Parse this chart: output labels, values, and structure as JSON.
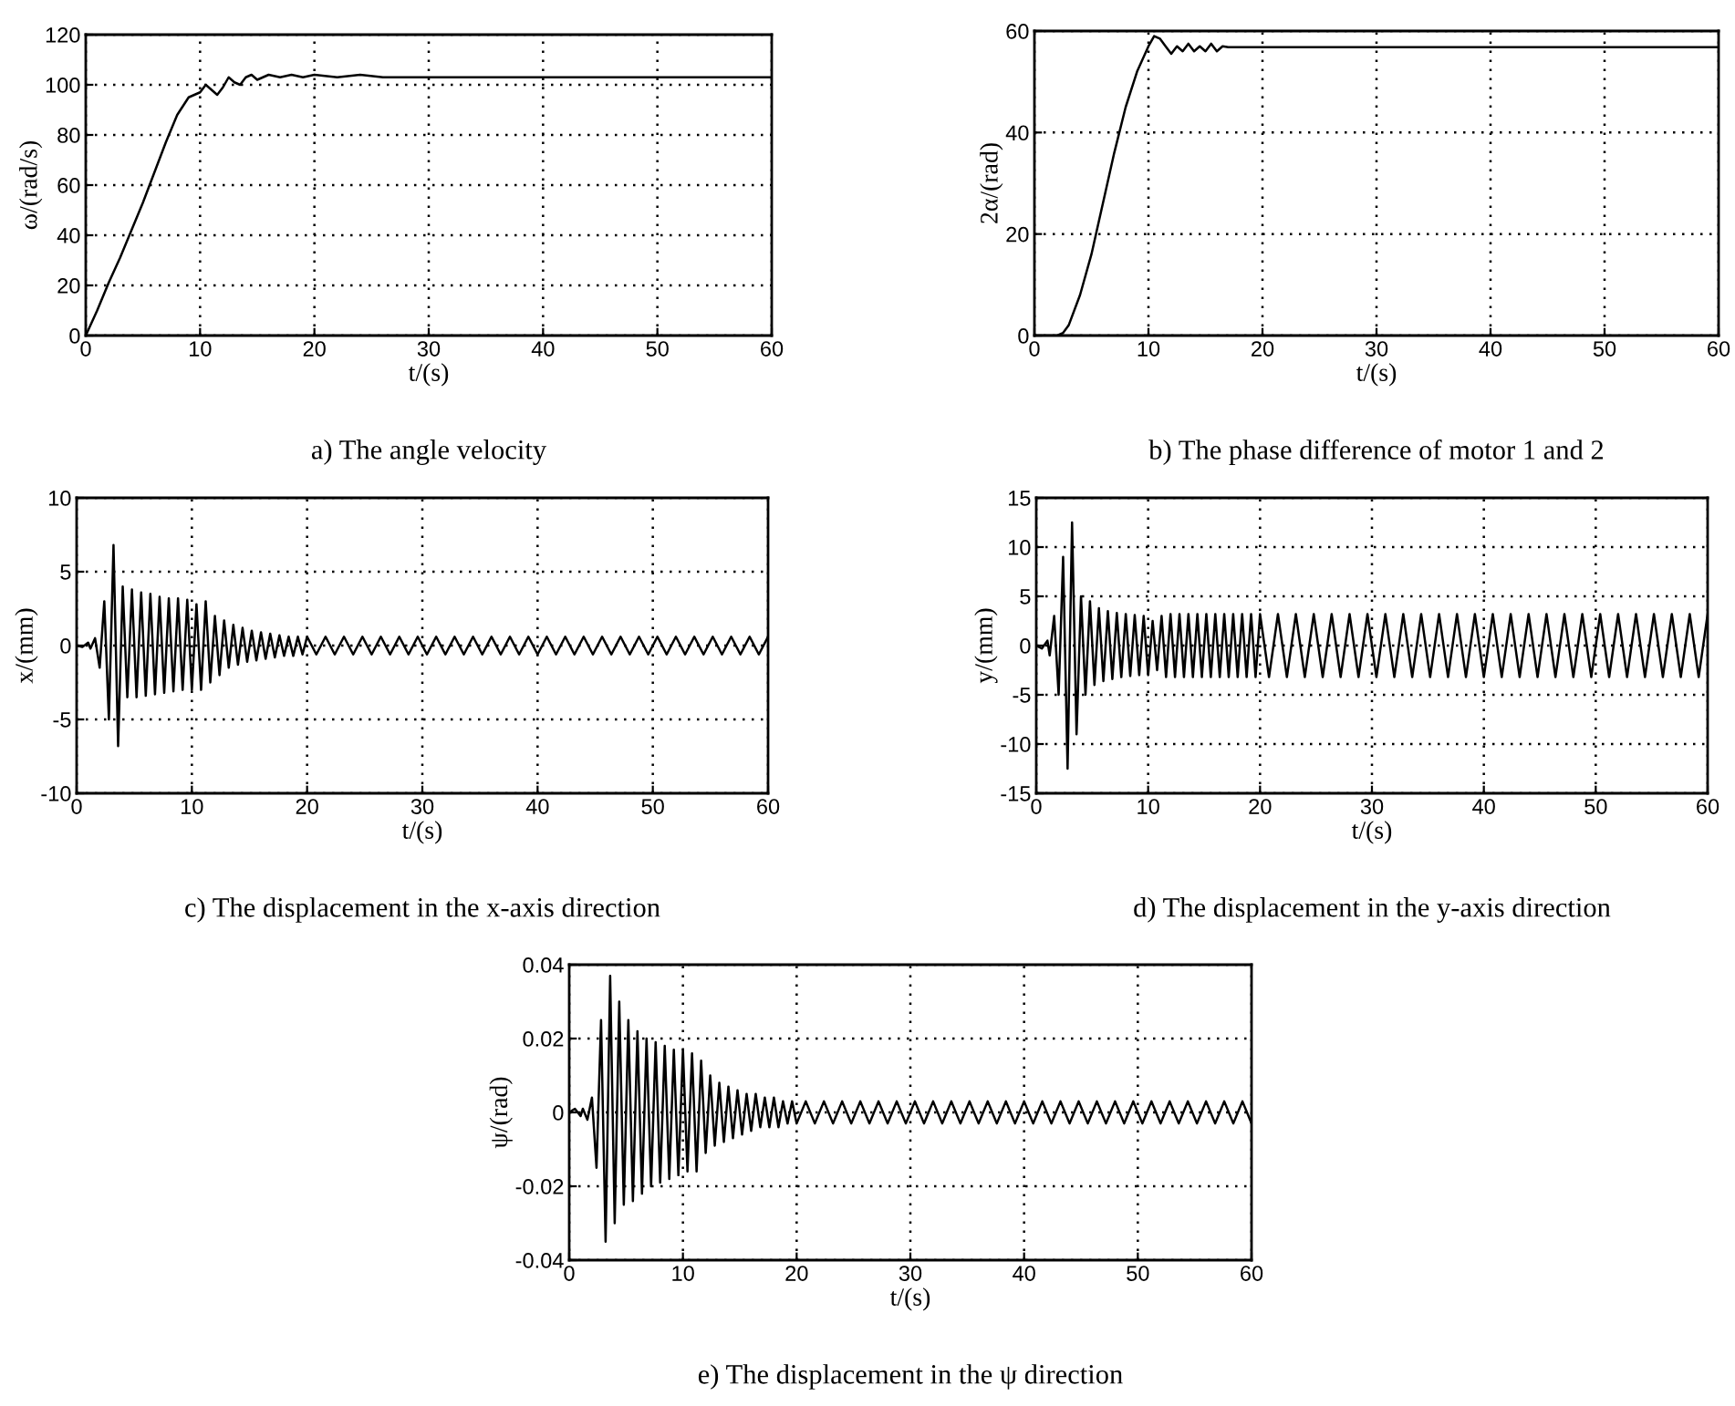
{
  "chart_data": [
    {
      "type": "line",
      "xlabel": "t/(s)",
      "ylabel": "ω/(rad/s)",
      "annotations": [
        "a) The angle velocity"
      ],
      "xlim": [
        0,
        60
      ],
      "ylim": [
        0,
        120
      ],
      "xticks": [
        0,
        10,
        20,
        30,
        40,
        50,
        60
      ],
      "yticks": [
        0,
        20,
        40,
        60,
        80,
        100,
        120
      ],
      "grid": true,
      "line_style": "solid",
      "marker": "none",
      "x": [
        0,
        1,
        2,
        3,
        4,
        5,
        6,
        7,
        8,
        9,
        10,
        10.5,
        11,
        11.5,
        12,
        12.5,
        13,
        13.5,
        14,
        14.5,
        15,
        16,
        17,
        18,
        19,
        20,
        22,
        24,
        26,
        30,
        60
      ],
      "series": [
        {
          "color": "#000000",
          "values": [
            0,
            10,
            21,
            31,
            42,
            53,
            65,
            77,
            88,
            95,
            97,
            100,
            98,
            96,
            99,
            103,
            101,
            100,
            103,
            104,
            102,
            104,
            103,
            104,
            103,
            104,
            103,
            104,
            103,
            103,
            103
          ]
        }
      ]
    },
    {
      "type": "line",
      "xlabel": "t/(s)",
      "ylabel": "2α/(rad)",
      "annotations": [
        "b) The phase difference of motor 1 and 2"
      ],
      "xlim": [
        0,
        60
      ],
      "ylim": [
        0,
        60
      ],
      "xticks": [
        0,
        10,
        20,
        30,
        40,
        50,
        60
      ],
      "yticks": [
        0,
        20,
        40,
        60
      ],
      "grid": true,
      "line_style": "solid",
      "marker": "none",
      "x": [
        0,
        1,
        2,
        2.5,
        3,
        4,
        5,
        6,
        7,
        8,
        9,
        10,
        10.5,
        11,
        11.5,
        12,
        12.5,
        13,
        13.5,
        14,
        14.5,
        15,
        15.5,
        16,
        16.5,
        17,
        60
      ],
      "series": [
        {
          "color": "#000000",
          "values": [
            0,
            0,
            0,
            0.5,
            2,
            8,
            16,
            26,
            36,
            45,
            52,
            57,
            59,
            58.5,
            57,
            55.5,
            57,
            56,
            57.5,
            56,
            57,
            56,
            57.5,
            56,
            57,
            56.8,
            56.8
          ]
        }
      ]
    },
    {
      "type": "line",
      "xlabel": "t/(s)",
      "ylabel": "x/(mm)",
      "annotations": [
        "c) The displacement in the x-axis direction"
      ],
      "xlim": [
        0,
        60
      ],
      "ylim": [
        -10,
        10
      ],
      "xticks": [
        0,
        10,
        20,
        30,
        40,
        50,
        60
      ],
      "yticks": [
        -10,
        -5,
        0,
        5,
        10
      ],
      "grid": true,
      "line_style": "solid",
      "marker": "none",
      "x": [
        0,
        0.5,
        1,
        1.2,
        1.6,
        2,
        2.4,
        2.8,
        3.2,
        3.6,
        4,
        4.4,
        4.8,
        5.2,
        5.6,
        6,
        6.4,
        6.8,
        7.2,
        7.6,
        8,
        8.4,
        8.8,
        9.2,
        9.6,
        10,
        10.4,
        10.8,
        11.2,
        11.6,
        12,
        12.4,
        12.8,
        13.2,
        13.6,
        14,
        14.4,
        14.8,
        15.2,
        15.6,
        16,
        16.4,
        16.8,
        17.2,
        17.6,
        18,
        18.4,
        18.8,
        19.2,
        19.6,
        20,
        20.8,
        21.6,
        22.4,
        23.2,
        24,
        24.8,
        25.6,
        26.4,
        27.2,
        28,
        28.8,
        29.6,
        30.4,
        31.2,
        32,
        32.8,
        33.6,
        34.4,
        35.2,
        36,
        36.8,
        37.6,
        38.4,
        39.2,
        40,
        40.8,
        41.6,
        42.4,
        43.2,
        44,
        44.8,
        45.6,
        46.4,
        47.2,
        48,
        48.8,
        49.6,
        50.4,
        51.2,
        52,
        52.8,
        53.6,
        54.4,
        55.2,
        56,
        56.8,
        57.6,
        58.4,
        59.2,
        60
      ],
      "series": [
        {
          "color": "#000000",
          "values": [
            0,
            -0.1,
            0.2,
            -0.2,
            0.5,
            -1.5,
            3,
            -5,
            6.8,
            -6.8,
            4,
            -3.5,
            3.8,
            -3.5,
            3.6,
            -3.4,
            3.5,
            -3.3,
            3.3,
            -3.2,
            3.2,
            -3.1,
            3.2,
            -3,
            3.1,
            -3,
            2.8,
            -3,
            3,
            -2.5,
            2,
            -2,
            1.7,
            -1.5,
            1.4,
            -1.3,
            1.2,
            -1.1,
            1,
            -1,
            0.9,
            -0.9,
            0.8,
            -0.8,
            0.7,
            -0.7,
            0.6,
            -0.7,
            0.6,
            -0.6,
            0.6,
            -0.6,
            0.6,
            -0.6,
            0.6,
            -0.6,
            0.6,
            -0.6,
            0.6,
            -0.6,
            0.6,
            -0.6,
            0.6,
            -0.6,
            0.6,
            -0.6,
            0.6,
            -0.6,
            0.6,
            -0.6,
            0.6,
            -0.6,
            0.6,
            -0.6,
            0.6,
            -0.6,
            0.6,
            -0.6,
            0.6,
            -0.6,
            0.6,
            -0.6,
            0.6,
            -0.6,
            0.6,
            -0.6,
            0.6,
            -0.6,
            0.6,
            -0.6,
            0.6,
            -0.6,
            0.6,
            -0.6,
            0.6,
            -0.6,
            0.6,
            -0.6,
            0.6,
            -0.6,
            0.6
          ]
        }
      ]
    },
    {
      "type": "line",
      "xlabel": "t/(s)",
      "ylabel": "y/(mm)",
      "annotations": [
        "d) The displacement in the y-axis direction"
      ],
      "xlim": [
        0,
        60
      ],
      "ylim": [
        -15,
        15
      ],
      "xticks": [
        0,
        10,
        20,
        30,
        40,
        50,
        60
      ],
      "yticks": [
        -15,
        -10,
        -5,
        0,
        5,
        10,
        15
      ],
      "grid": true,
      "line_style": "solid",
      "marker": "none",
      "x": [
        0,
        0.5,
        1,
        1.2,
        1.6,
        2,
        2.4,
        2.8,
        3.2,
        3.6,
        4,
        4.4,
        4.8,
        5.2,
        5.6,
        6,
        6.4,
        6.8,
        7.2,
        7.6,
        8,
        8.4,
        8.8,
        9.2,
        9.6,
        10,
        10.4,
        10.8,
        11.2,
        11.6,
        12,
        12.4,
        12.8,
        13.2,
        13.6,
        14,
        14.4,
        14.8,
        15.2,
        15.6,
        16,
        16.4,
        16.8,
        17.2,
        17.6,
        18,
        18.4,
        18.8,
        19.2,
        19.6,
        20,
        20.8,
        21.6,
        22.4,
        23.2,
        24,
        24.8,
        25.6,
        26.4,
        27.2,
        28,
        28.8,
        29.6,
        30.4,
        31.2,
        32,
        32.8,
        33.6,
        34.4,
        35.2,
        36,
        36.8,
        37.6,
        38.4,
        39.2,
        40,
        40.8,
        41.6,
        42.4,
        43.2,
        44,
        44.8,
        45.6,
        46.4,
        47.2,
        48,
        48.8,
        49.6,
        50.4,
        51.2,
        52,
        52.8,
        53.6,
        54.4,
        55.2,
        56,
        56.8,
        57.6,
        58.4,
        59.2,
        60
      ],
      "series": [
        {
          "color": "#000000",
          "values": [
            0,
            -0.3,
            0.5,
            -1,
            3,
            -5,
            9,
            -12.5,
            12.5,
            -9,
            5,
            -5,
            4.5,
            -4,
            3.8,
            -3.6,
            3.5,
            -3.4,
            3.3,
            -3.2,
            3.2,
            -3.1,
            3.1,
            -3,
            3,
            -3,
            2.5,
            -2.5,
            3,
            -3.2,
            3.2,
            -3.2,
            3.2,
            -3.2,
            3.2,
            -3.2,
            3.2,
            -3.2,
            3.2,
            -3.2,
            3.2,
            -3.2,
            3.2,
            -3.2,
            3.2,
            -3.2,
            3.2,
            -3.2,
            3.2,
            -3.2,
            3.2,
            -3.2,
            3.2,
            -3.2,
            3.2,
            -3.2,
            3.2,
            -3.2,
            3.2,
            -3.2,
            3.2,
            -3.2,
            3.2,
            -3.2,
            3.2,
            -3.2,
            3.2,
            -3.2,
            3.2,
            -3.2,
            3.2,
            -3.2,
            3.2,
            -3.2,
            3.2,
            -3.2,
            3.2,
            -3.2,
            3.2,
            -3.2,
            3.2,
            -3.2,
            3.2,
            -3.2,
            3.2,
            -3.2,
            3.2,
            -3.2,
            3.2,
            -3.2,
            3.2,
            -3.2,
            3.2,
            -3.2,
            3.2,
            -3.2,
            3.2,
            -3.2,
            3.2,
            -3.2,
            3.2
          ]
        }
      ]
    },
    {
      "type": "line",
      "xlabel": "t/(s)",
      "ylabel": "ψ/(rad)",
      "annotations": [
        "e) The displacement in the ψ direction"
      ],
      "xlim": [
        0,
        60
      ],
      "ylim": [
        -0.04,
        0.04
      ],
      "xticks": [
        0,
        10,
        20,
        30,
        40,
        50,
        60
      ],
      "yticks": [
        -0.04,
        -0.02,
        0,
        0.02,
        0.04
      ],
      "grid": true,
      "line_style": "solid",
      "marker": "none",
      "x": [
        0,
        0.5,
        1,
        1.2,
        1.6,
        2,
        2.4,
        2.8,
        3.2,
        3.6,
        4,
        4.4,
        4.8,
        5.2,
        5.6,
        6,
        6.4,
        6.8,
        7.2,
        7.6,
        8,
        8.4,
        8.8,
        9.2,
        9.6,
        10,
        10.4,
        10.8,
        11.2,
        11.6,
        12,
        12.4,
        12.8,
        13.2,
        13.6,
        14,
        14.4,
        14.8,
        15.2,
        15.6,
        16,
        16.4,
        16.8,
        17.2,
        17.6,
        18,
        18.4,
        18.8,
        19.2,
        19.6,
        20,
        20.8,
        21.6,
        22.4,
        23.2,
        24,
        24.8,
        25.6,
        26.4,
        27.2,
        28,
        28.8,
        29.6,
        30.4,
        31.2,
        32,
        32.8,
        33.6,
        34.4,
        35.2,
        36,
        36.8,
        37.6,
        38.4,
        39.2,
        40,
        40.8,
        41.6,
        42.4,
        43.2,
        44,
        44.8,
        45.6,
        46.4,
        47.2,
        48,
        48.8,
        49.6,
        50.4,
        51.2,
        52,
        52.8,
        53.6,
        54.4,
        55.2,
        56,
        56.8,
        57.6,
        58.4,
        59.2,
        60
      ],
      "series": [
        {
          "color": "#000000",
          "values": [
            0,
            0.001,
            -0.001,
            0.001,
            -0.002,
            0.004,
            -0.015,
            0.025,
            -0.035,
            0.037,
            -0.03,
            0.03,
            -0.025,
            0.025,
            -0.024,
            0.022,
            -0.022,
            0.02,
            -0.02,
            0.019,
            -0.019,
            0.018,
            -0.018,
            0.017,
            -0.017,
            0.017,
            -0.016,
            0.016,
            -0.016,
            0.014,
            -0.011,
            0.01,
            -0.009,
            0.008,
            -0.008,
            0.007,
            -0.007,
            0.006,
            -0.006,
            0.005,
            -0.005,
            0.005,
            -0.004,
            0.004,
            -0.004,
            0.004,
            -0.004,
            0.003,
            -0.003,
            0.003,
            -0.003,
            0.003,
            -0.003,
            0.003,
            -0.003,
            0.003,
            -0.003,
            0.003,
            -0.003,
            0.003,
            -0.003,
            0.003,
            -0.003,
            0.003,
            -0.003,
            0.003,
            -0.003,
            0.003,
            -0.003,
            0.003,
            -0.003,
            0.003,
            -0.003,
            0.003,
            -0.003,
            0.003,
            -0.003,
            0.003,
            -0.003,
            0.003,
            -0.003,
            0.003,
            -0.003,
            0.003,
            -0.003,
            0.003,
            -0.003,
            0.003,
            -0.003,
            0.003,
            -0.003,
            0.003,
            -0.003,
            0.003,
            -0.003,
            0.003,
            -0.003,
            0.003,
            -0.003,
            0.003,
            -0.003
          ]
        }
      ]
    }
  ]
}
